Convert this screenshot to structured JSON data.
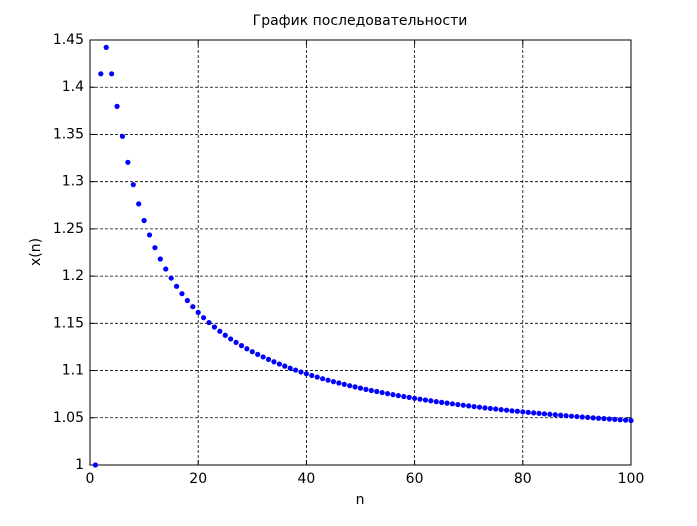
{
  "chart_data": {
    "type": "scatter",
    "title": "График последовательности",
    "xlabel": "n",
    "ylabel": "x(n)",
    "x": [
      1,
      2,
      3,
      4,
      5,
      6,
      7,
      8,
      9,
      10,
      11,
      12,
      13,
      14,
      15,
      16,
      17,
      18,
      19,
      20,
      21,
      22,
      23,
      24,
      25,
      26,
      27,
      28,
      29,
      30,
      31,
      32,
      33,
      34,
      35,
      36,
      37,
      38,
      39,
      40,
      41,
      42,
      43,
      44,
      45,
      46,
      47,
      48,
      49,
      50,
      51,
      52,
      53,
      54,
      55,
      56,
      57,
      58,
      59,
      60,
      61,
      62,
      63,
      64,
      65,
      66,
      67,
      68,
      69,
      70,
      71,
      72,
      73,
      74,
      75,
      76,
      77,
      78,
      79,
      80,
      81,
      82,
      83,
      84,
      85,
      86,
      87,
      88,
      89,
      90,
      91,
      92,
      93,
      94,
      95,
      96,
      97,
      98,
      99,
      100
    ],
    "values": [
      1,
      1.4142,
      1.4422,
      1.4142,
      1.3797,
      1.348,
      1.3205,
      1.2968,
      1.2765,
      1.2589,
      1.2436,
      1.2301,
      1.2181,
      1.2075,
      1.1979,
      1.1892,
      1.1814,
      1.1742,
      1.1676,
      1.1616,
      1.156,
      1.1508,
      1.1461,
      1.1416,
      1.1374,
      1.1335,
      1.1298,
      1.1264,
      1.1231,
      1.12,
      1.1171,
      1.1144,
      1.1118,
      1.1093,
      1.1069,
      1.1047,
      1.1025,
      1.1005,
      1.0985,
      1.0966,
      1.0948,
      1.0931,
      1.0914,
      1.0898,
      1.0883,
      1.0868,
      1.0854,
      1.084,
      1.0827,
      1.0814,
      1.0801,
      1.0789,
      1.0778,
      1.0767,
      1.0756,
      1.0745,
      1.0735,
      1.0725,
      1.0716,
      1.0706,
      1.0697,
      1.0688,
      1.068,
      1.0671,
      1.0663,
      1.0655,
      1.0648,
      1.064,
      1.0633,
      1.0626,
      1.0619,
      1.0612,
      1.0605,
      1.0599,
      1.0593,
      1.0586,
      1.058,
      1.0574,
      1.0569,
      1.0563,
      1.0557,
      1.0552,
      1.0547,
      1.0542,
      1.0537,
      1.0532,
      1.0527,
      1.0522,
      1.0517,
      1.0513,
      1.0508,
      1.0504,
      1.0499,
      1.0495,
      1.0491,
      1.0487,
      1.0483,
      1.0479,
      1.0475,
      1.0471
    ],
    "color": "#0000ff",
    "xlim": [
      0,
      100
    ],
    "xticks": [
      0,
      20,
      40,
      60,
      80,
      100
    ],
    "ylim": [
      1,
      1.45
    ],
    "yticks": [
      1,
      1.05,
      1.1,
      1.15,
      1.2,
      1.25,
      1.3,
      1.35,
      1.4,
      1.45
    ],
    "grid": true
  }
}
